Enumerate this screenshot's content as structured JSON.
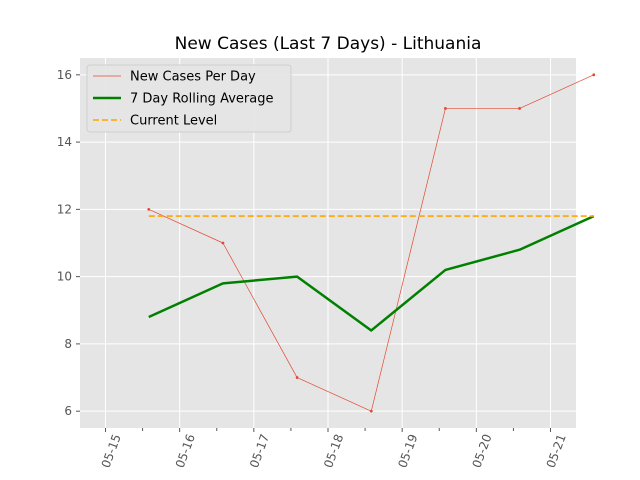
{
  "chart_data": {
    "type": "line",
    "title": "New Cases (Last 7 Days) - Lithuania",
    "xlabel": "",
    "ylabel": "",
    "x_tick_labels": [
      "05-15",
      "05-16",
      "05-17",
      "05-18",
      "05-19",
      "05-20",
      "05-21"
    ],
    "x_tick_rotation_deg": 70,
    "yticks": [
      6,
      8,
      10,
      12,
      14,
      16
    ],
    "ylim": [
      5.5,
      16.5
    ],
    "grid": true,
    "legend_position": "upper-left",
    "series": [
      {
        "name": "New Cases Per Day",
        "color": "#E24A33",
        "x": [
          "05-15 14:00",
          "05-16 14:00",
          "05-17 14:00",
          "05-18 14:00",
          "05-19 14:00",
          "05-20 14:00",
          "05-21 14:00"
        ],
        "values": [
          12,
          11,
          7,
          6,
          15,
          15,
          16
        ],
        "style": "thin-line-with-markers"
      },
      {
        "name": "7 Day Rolling Average",
        "color": "#008000",
        "x": [
          "05-15 14:00",
          "05-16 14:00",
          "05-17 14:00",
          "05-18 14:00",
          "05-19 14:00",
          "05-20 14:00",
          "05-21 14:00"
        ],
        "values": [
          8.8,
          9.8,
          10.0,
          8.4,
          10.2,
          10.8,
          11.8
        ],
        "style": "thick-line"
      },
      {
        "name": "Current Level",
        "color": "#FFA500",
        "x": [
          "05-15 14:00",
          "05-21 14:00"
        ],
        "values": [
          11.8,
          11.8
        ],
        "style": "dashed-line"
      }
    ]
  }
}
